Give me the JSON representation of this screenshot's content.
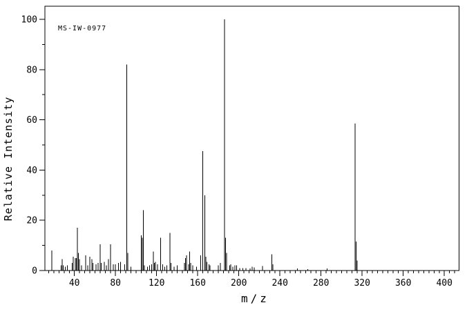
{
  "figure": {
    "background_color": "#ffffff",
    "line_color": "#000000",
    "spectrum_id": "MS-IW-0977"
  },
  "chart_data": {
    "type": "bar",
    "subtype": "mass_spectrum_stick_plot",
    "title": "MS-IW-0977",
    "xlabel": "m/z",
    "ylabel": "Relative Intensity",
    "xlim": [
      11,
      415
    ],
    "ylim": [
      0,
      105
    ],
    "x_major_tick_step": 40,
    "x_minor_tick_step": 5,
    "x_major_ticks": [
      40,
      80,
      120,
      160,
      200,
      240,
      280,
      320,
      360,
      400
    ],
    "y_major_tick_step": 20,
    "y_minor_tick_step": 10,
    "y_major_ticks": [
      0,
      20,
      40,
      60,
      80,
      100
    ],
    "grid": false,
    "legend": false,
    "peaks_format": [
      "mz",
      "relative_intensity"
    ],
    "peaks": [
      [
        18,
        8
      ],
      [
        27,
        2
      ],
      [
        28,
        4.5
      ],
      [
        29,
        2
      ],
      [
        31,
        1.5
      ],
      [
        33,
        2
      ],
      [
        38,
        3
      ],
      [
        39,
        5.5
      ],
      [
        41,
        5
      ],
      [
        42,
        5
      ],
      [
        43,
        17
      ],
      [
        44,
        7
      ],
      [
        45,
        4.5
      ],
      [
        47,
        2
      ],
      [
        51,
        6
      ],
      [
        53,
        2
      ],
      [
        55,
        5.5
      ],
      [
        57,
        4.5
      ],
      [
        58,
        3
      ],
      [
        61,
        2.5
      ],
      [
        63,
        3
      ],
      [
        65,
        10.5
      ],
      [
        66,
        3
      ],
      [
        69,
        3.5
      ],
      [
        71,
        2
      ],
      [
        73,
        4.5
      ],
      [
        75,
        10.5
      ],
      [
        78,
        2.5
      ],
      [
        80,
        2.5
      ],
      [
        83,
        3
      ],
      [
        85,
        3.5
      ],
      [
        89,
        2.5
      ],
      [
        91,
        82
      ],
      [
        92,
        7
      ],
      [
        95,
        1.5
      ],
      [
        105,
        14
      ],
      [
        106,
        13
      ],
      [
        107,
        24
      ],
      [
        108,
        2
      ],
      [
        111,
        1.5
      ],
      [
        113,
        2
      ],
      [
        115,
        2.5
      ],
      [
        117,
        7.5
      ],
      [
        118,
        3
      ],
      [
        119,
        3.5
      ],
      [
        121,
        2.5
      ],
      [
        124,
        13
      ],
      [
        126,
        2.5
      ],
      [
        128,
        1.5
      ],
      [
        130,
        2
      ],
      [
        133,
        15
      ],
      [
        134,
        3
      ],
      [
        137,
        1.5
      ],
      [
        140,
        2
      ],
      [
        147,
        3
      ],
      [
        148,
        5
      ],
      [
        149,
        6
      ],
      [
        151,
        2.5
      ],
      [
        152,
        7.5
      ],
      [
        153,
        3
      ],
      [
        155,
        2
      ],
      [
        159,
        1.5
      ],
      [
        163,
        6
      ],
      [
        165,
        47.5
      ],
      [
        167,
        30
      ],
      [
        168,
        5.5
      ],
      [
        169,
        3.5
      ],
      [
        171,
        2.5
      ],
      [
        172,
        2
      ],
      [
        180,
        2
      ],
      [
        182,
        3
      ],
      [
        186,
        100
      ],
      [
        187,
        13
      ],
      [
        188,
        7
      ],
      [
        191,
        2
      ],
      [
        192,
        2.5
      ],
      [
        194,
        1.5
      ],
      [
        196,
        2
      ],
      [
        198,
        2
      ],
      [
        201,
        1
      ],
      [
        204,
        1
      ],
      [
        207,
        1
      ],
      [
        211,
        0.8
      ],
      [
        213,
        1.5
      ],
      [
        215,
        1.2
      ],
      [
        223,
        1.8
      ],
      [
        232,
        6.5
      ],
      [
        233,
        2.5
      ],
      [
        257,
        0.8
      ],
      [
        267,
        0.6
      ],
      [
        286,
        0.8
      ],
      [
        313,
        58.5
      ],
      [
        314,
        11.5
      ],
      [
        315,
        4
      ]
    ]
  }
}
